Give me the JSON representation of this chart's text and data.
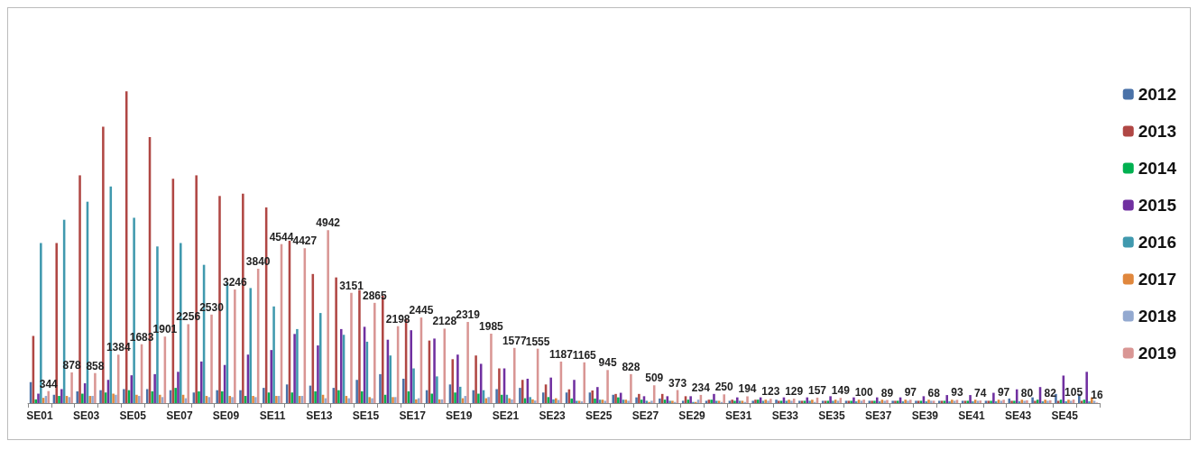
{
  "chart_data": {
    "type": "bar",
    "categories": [
      "SE01",
      null,
      "SE03",
      null,
      "SE05",
      null,
      "SE07",
      null,
      "SE09",
      null,
      "SE11",
      null,
      "SE13",
      null,
      "SE15",
      null,
      "SE17",
      null,
      "SE19",
      null,
      "SE21",
      null,
      "SE23",
      null,
      "SE25",
      null,
      "SE27",
      null,
      "SE29",
      null,
      "SE31",
      null,
      "SE33",
      null,
      "SE35",
      null,
      "SE37",
      null,
      "SE39",
      null,
      "SE41",
      null,
      "SE43",
      null,
      "SE45",
      null
    ],
    "series": [
      {
        "name": "2012",
        "color": "#4a72a8",
        "values": [
          600,
          238,
          336,
          369,
          400,
          400,
          369,
          303,
          369,
          369,
          435,
          533,
          500,
          435,
          664,
          828,
          697,
          369,
          533,
          369,
          400,
          435,
          303,
          303,
          303,
          238,
          164,
          131,
          66,
          66,
          66,
          66,
          98,
          66,
          66,
          66,
          66,
          66,
          66,
          66,
          66,
          66,
          131,
          164,
          262,
          262
        ]
      },
      {
        "name": "2013",
        "color": "#b04744",
        "values": [
          1920,
          4575,
          6510,
          7897,
          8913,
          7601,
          6412,
          6510,
          5920,
          5986,
          5592,
          4641,
          3690,
          3592,
          3231,
          3067,
          2411,
          1788,
          1255,
          1361,
          992,
          664,
          533,
          394,
          361,
          262,
          262,
          262,
          197,
          98,
          98,
          98,
          66,
          66,
          66,
          66,
          66,
          66,
          66,
          66,
          66,
          66,
          66,
          66,
          66,
          66
        ]
      },
      {
        "name": "2014",
        "color": "#00b050",
        "values": [
          107,
          205,
          270,
          303,
          369,
          336,
          435,
          336,
          336,
          205,
          303,
          303,
          336,
          369,
          336,
          238,
          336,
          270,
          303,
          270,
          238,
          139,
          172,
          131,
          131,
          164,
          98,
          98,
          98,
          98,
          66,
          98,
          66,
          66,
          66,
          66,
          66,
          66,
          66,
          66,
          66,
          66,
          66,
          98,
          98,
          98
        ]
      },
      {
        "name": "2015",
        "color": "#7030a0",
        "values": [
          270,
          400,
          566,
          664,
          795,
          828,
          894,
          1189,
          1090,
          1386,
          1517,
          1976,
          1648,
          2116,
          2181,
          1812,
          2083,
          1845,
          1386,
          1123,
          992,
          697,
          730,
          664,
          459,
          295,
          197,
          197,
          197,
          262,
          164,
          164,
          164,
          164,
          197,
          164,
          164,
          164,
          197,
          230,
          230,
          295,
          394,
          459,
          787,
          894
        ]
      },
      {
        "name": "2016",
        "color": "#4099ae",
        "values": [
          4575,
          5240,
          5756,
          6191,
          5297,
          4477,
          4575,
          3952,
          3452,
          3288,
          2763,
          2116,
          2575,
          1952,
          1755,
          1361,
          992,
          763,
          467,
          369,
          238,
          172,
          107,
          66,
          98,
          98,
          66,
          66,
          33,
          66,
          66,
          66,
          66,
          66,
          66,
          50,
          50,
          50,
          50,
          50,
          50,
          50,
          50,
          50,
          50,
          50
        ]
      },
      {
        "name": "2017",
        "color": "#e0873d",
        "values": [
          150,
          205,
          205,
          270,
          238,
          238,
          238,
          205,
          205,
          205,
          205,
          205,
          238,
          205,
          172,
          172,
          107,
          107,
          139,
          139,
          139,
          107,
          139,
          66,
          98,
          98,
          33,
          66,
          33,
          66,
          66,
          98,
          98,
          98,
          98,
          98,
          98,
          98,
          98,
          98,
          98,
          98,
          98,
          98,
          98,
          164
        ]
      },
      {
        "name": "2018",
        "color": "#93a9d0",
        "values": [
          205,
          172,
          205,
          238,
          205,
          172,
          139,
          172,
          172,
          172,
          205,
          205,
          139,
          139,
          139,
          172,
          139,
          107,
          205,
          172,
          107,
          74,
          90,
          49,
          66,
          66,
          66,
          33,
          98,
          33,
          33,
          66,
          66,
          33,
          66,
          66,
          66,
          66,
          66,
          66,
          66,
          66,
          66,
          66,
          66,
          66
        ]
      },
      {
        "name": "2019",
        "color": "#d99694",
        "values": [
          344,
          878,
          858,
          1384,
          1683,
          1901,
          2256,
          2530,
          3246,
          3840,
          4544,
          4427,
          4942,
          3151,
          2865,
          2198,
          2445,
          2128,
          2319,
          1985,
          1577,
          1555,
          1187,
          1165,
          945,
          828,
          509,
          373,
          234,
          250,
          194,
          123,
          129,
          157,
          149,
          100,
          89,
          97,
          68,
          93,
          74,
          97,
          80,
          82,
          105,
          16
        ],
        "value_labels": [
          "344",
          "878",
          "858",
          "1384",
          "1683",
          "1901",
          "2256",
          "2530",
          "3246",
          "3840",
          "4544",
          "4427",
          "4942",
          "3151",
          "2865",
          "2198",
          "2445",
          "2128",
          "2319",
          "1985",
          "1577",
          "1555",
          "1187",
          "1165",
          "945",
          "828",
          "509",
          "373",
          "234",
          "250",
          "194",
          "123",
          "129",
          "157",
          "149",
          "100",
          "89",
          "97",
          "68",
          "93",
          "74",
          "97",
          "80",
          "82",
          "105",
          "16"
        ]
      }
    ],
    "legend": "right",
    "grid": false
  }
}
